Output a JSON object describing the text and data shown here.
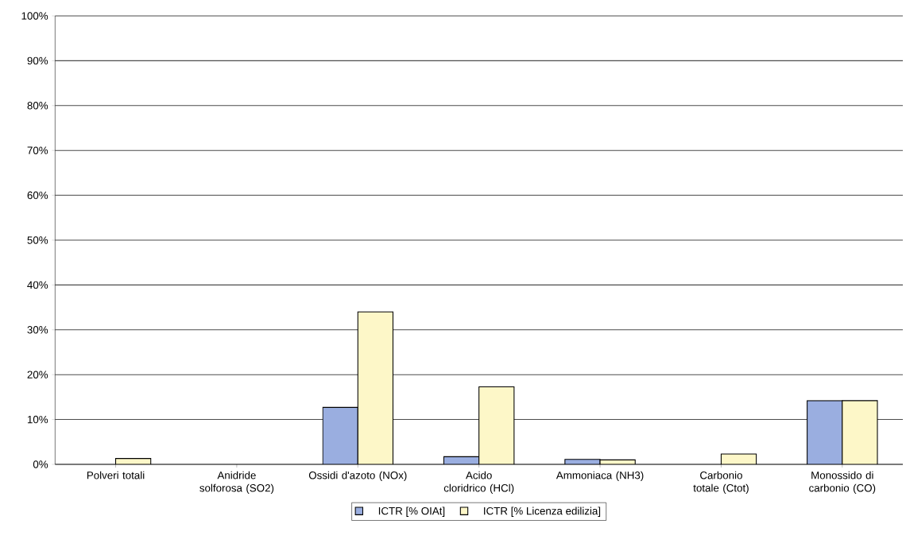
{
  "chart_data": {
    "type": "bar",
    "categories": [
      "Polveri totali",
      "Anidride solforosa (SO2)",
      "Ossidi d'azoto (NOx)",
      "Acido cloridrico (HCl)",
      "Ammoniaca (NH3)",
      "Carbonio totale (Ctot)",
      "Monossido di carbonio (CO)"
    ],
    "series": [
      {
        "name": "ICTR [% OIAt]",
        "color": "#9aaee0",
        "values": [
          null,
          null,
          12.7,
          1.7,
          1.1,
          null,
          14.2
        ]
      },
      {
        "name": "ICTR [% Licenza edilizia]",
        "color": "#fdf7c8",
        "values": [
          1.3,
          null,
          34,
          17.3,
          1.0,
          2.3,
          14.2
        ]
      }
    ],
    "ylim": [
      0,
      100
    ],
    "yticks": [
      {
        "value": 0,
        "label": "0%"
      },
      {
        "value": 10,
        "label": "10%"
      },
      {
        "value": 20,
        "label": "20%"
      },
      {
        "value": 30,
        "label": "30%"
      },
      {
        "value": 40,
        "label": "40%"
      },
      {
        "value": 50,
        "label": "50%"
      },
      {
        "value": 60,
        "label": "60%"
      },
      {
        "value": 70,
        "label": "70%"
      },
      {
        "value": 80,
        "label": "80%"
      },
      {
        "value": 90,
        "label": "90%"
      },
      {
        "value": 100,
        "label": "100%"
      }
    ],
    "grid": "y",
    "legend": "bottom"
  }
}
